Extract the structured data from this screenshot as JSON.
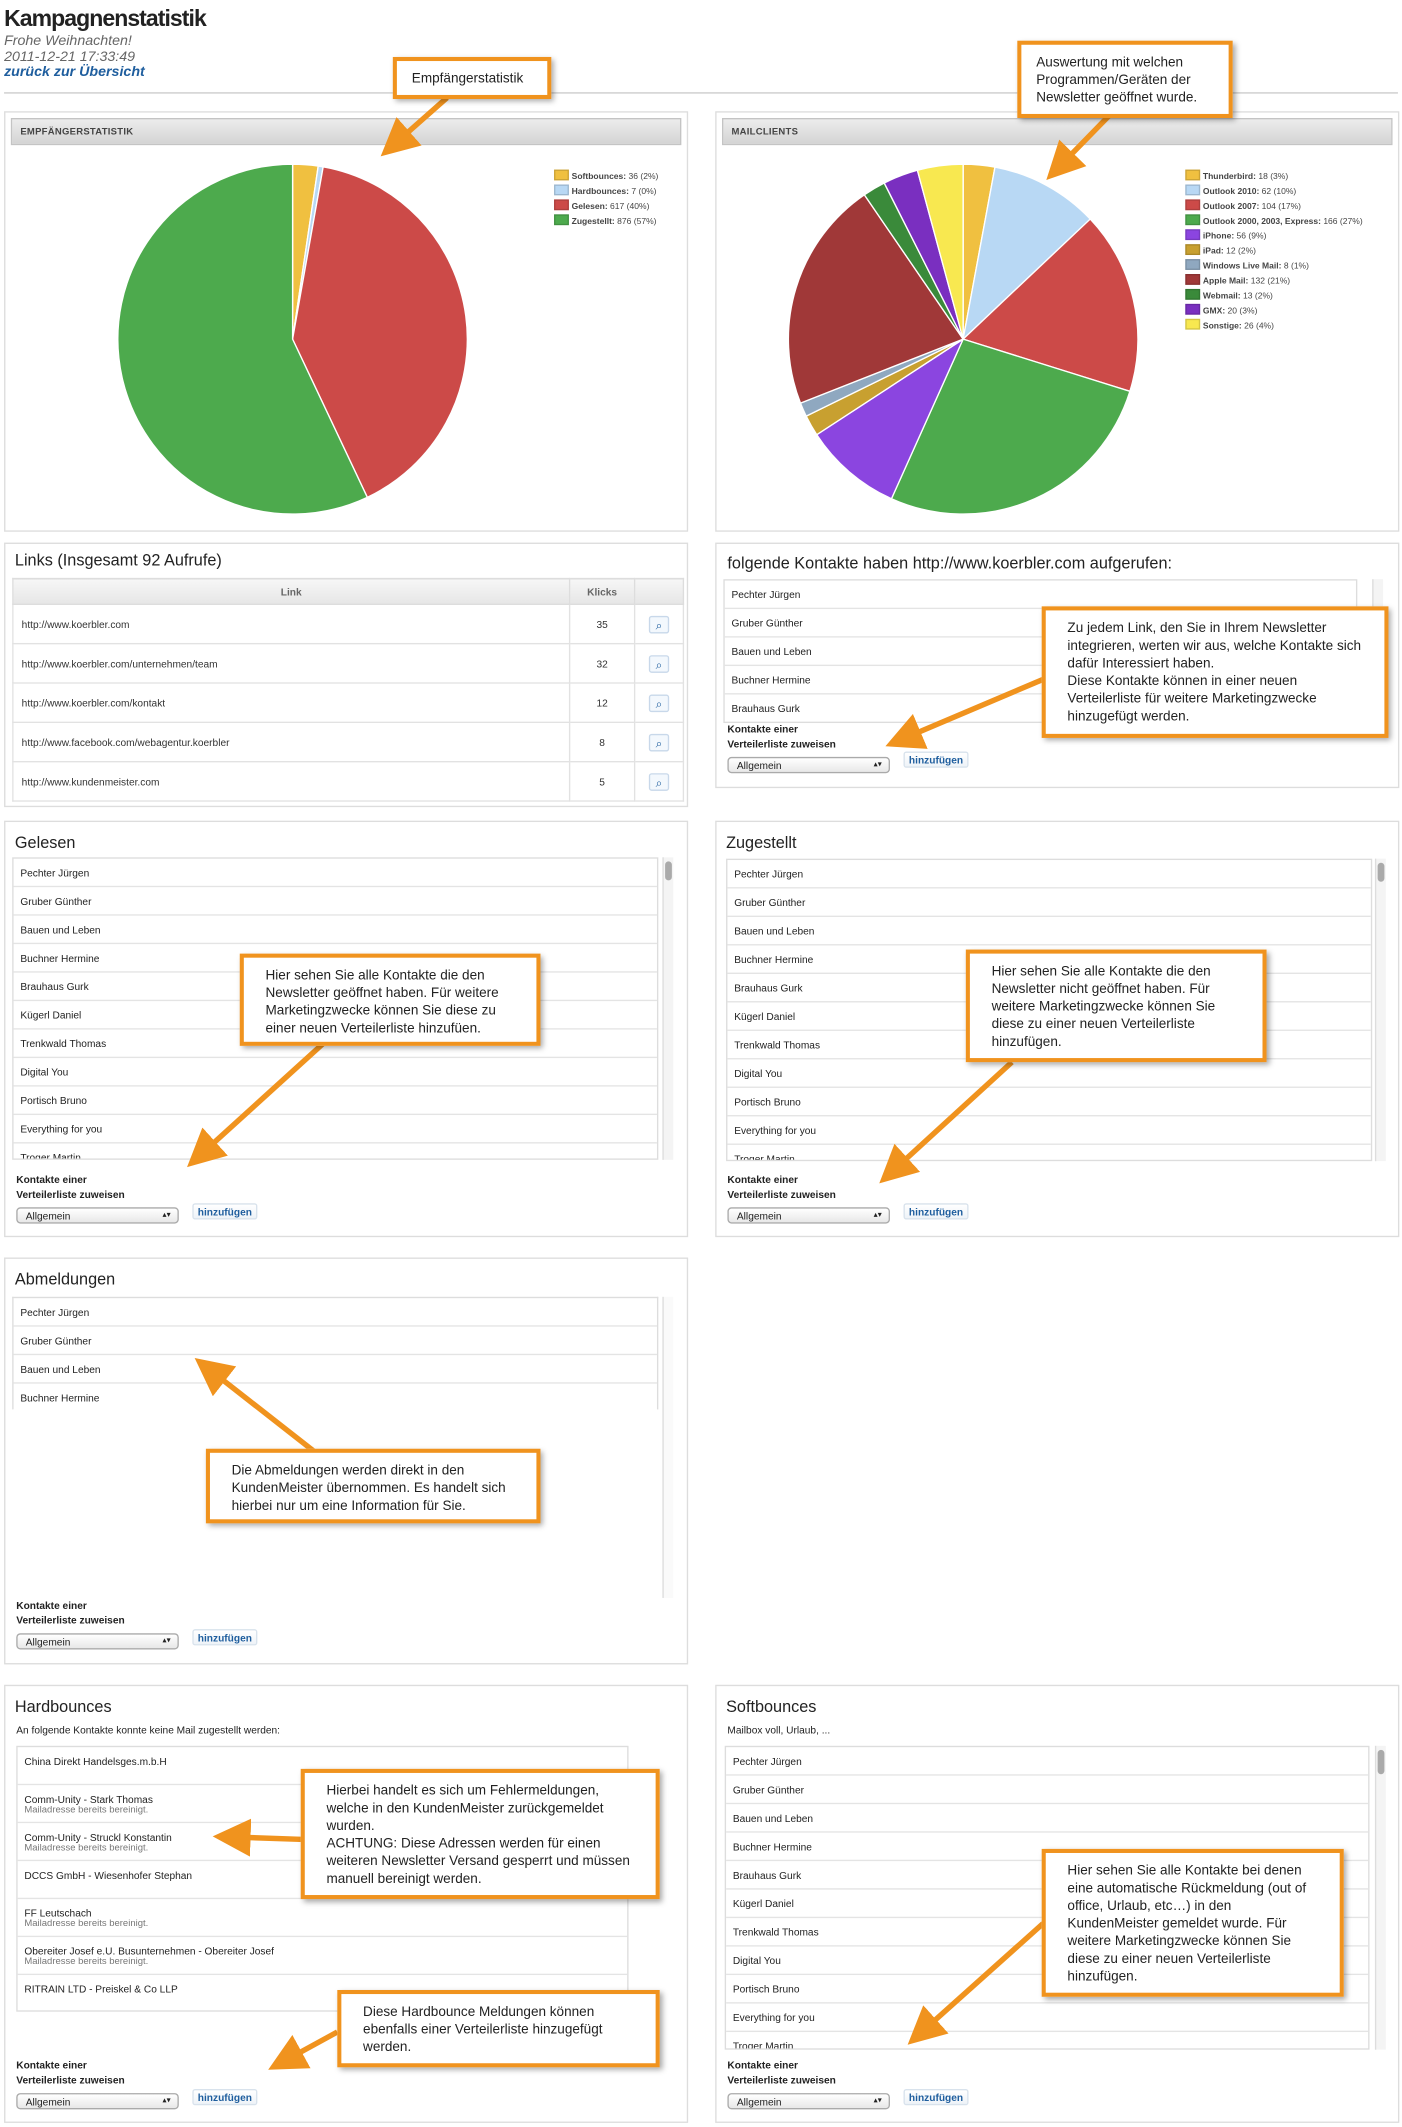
{
  "header": {
    "title": "Kampagnenstatistik",
    "greeting": "Frohe Weihnachten!",
    "datetime": "2011-12-21 17:33:49",
    "back_link": "zurück zur Übersicht"
  },
  "panels": {
    "empfaenger_header": "EMPFÄNGERSTATISTIK",
    "mailclients_header": "MAILCLIENTS",
    "links_title": "Links (Insgesamt 92 Aufrufe)",
    "kontakte_title": "folgende Kontakte haben http://www.koerbler.com aufgerufen:",
    "gelesen_title": "Gelesen",
    "zugestellt_title": "Zugestellt",
    "abmeldungen_title": "Abmeldungen",
    "hardbounces_title": "Hardbounces",
    "hardbounces_sub": "An folgende Kontakte konnte keine Mail zugestellt werden:",
    "softbounces_title": "Softbounces",
    "softbounces_sub": "Mailbox voll, Urlaub, ..."
  },
  "assign": {
    "label_line1": "Kontakte einer",
    "label_line2": "Verteilerliste zuweisen",
    "select_value": "Allgemein",
    "button": "hinzufügen"
  },
  "links_table": {
    "headers": [
      "Link",
      "Klicks"
    ],
    "rows": [
      {
        "url": "http://www.koerbler.com",
        "klicks": "35"
      },
      {
        "url": "http://www.koerbler.com/unternehmen/team",
        "klicks": "32"
      },
      {
        "url": "http://www.koerbler.com/kontakt",
        "klicks": "12"
      },
      {
        "url": "http://www.facebook.com/webagentur.koerbler",
        "klicks": "8"
      },
      {
        "url": "http://www.kundenmeister.com",
        "klicks": "5"
      }
    ]
  },
  "lists": {
    "kontakte": [
      "Pechter Jürgen",
      "Gruber Günther",
      "Bauen und Leben",
      "Buchner Hermine",
      "Brauhaus Gurk"
    ],
    "gelesen": [
      "Pechter Jürgen",
      "Gruber Günther",
      "Bauen und Leben",
      "Buchner Hermine",
      "Brauhaus Gurk",
      "Kügerl Daniel",
      "Trenkwald Thomas",
      "Digital You",
      "Portisch Bruno",
      "Everything for you",
      "Troger Martin"
    ],
    "zugestellt": [
      "Pechter Jürgen",
      "Gruber Günther",
      "Bauen und Leben",
      "Buchner Hermine",
      "Brauhaus Gurk",
      "Kügerl Daniel",
      "Trenkwald Thomas",
      "Digital You",
      "Portisch Bruno",
      "Everything for you",
      "Troger Martin"
    ],
    "abmeldungen": [
      "Pechter Jürgen",
      "Gruber Günther",
      "Bauen und Leben",
      "Buchner Hermine"
    ],
    "hardbounces": [
      {
        "name": "China Direkt Handelsges.m.b.H",
        "note": ""
      },
      {
        "name": "Comm-Unity - Stark Thomas",
        "note": "Mailadresse bereits bereinigt."
      },
      {
        "name": "Comm-Unity - Struckl Konstantin",
        "note": "Mailadresse bereits bereinigt."
      },
      {
        "name": "DCCS GmbH - Wiesenhofer Stephan",
        "note": ""
      },
      {
        "name": "FF Leutschach",
        "note": "Mailadresse bereits bereinigt."
      },
      {
        "name": "Obereiter Josef e.U. Busunternehmen - Obereiter Josef",
        "note": "Mailadresse bereits bereinigt."
      },
      {
        "name": "RITRAIN LTD - Preiskel & Co LLP",
        "note": ""
      }
    ],
    "softbounces": [
      "Pechter Jürgen",
      "Gruber Günther",
      "Bauen und Leben",
      "Buchner Hermine",
      "Brauhaus Gurk",
      "Kügerl Daniel",
      "Trenkwald Thomas",
      "Digital You",
      "Portisch Bruno",
      "Everything for you",
      "Troger Martin"
    ]
  },
  "callouts": {
    "empfaenger": "Empfängerstatistik",
    "mailclients": "Auswertung mit welchen Programmen/Geräten der Newsletter geöffnet wurde.",
    "links": "Zu jedem Link, den Sie in Ihrem Newsletter integrieren, werten wir aus, welche Kontakte sich dafür Interessiert haben.\nDiese Kontakte können in einer neuen Verteilerliste für weitere Marketingzwecke hinzugefügt werden.",
    "gelesen": "Hier sehen Sie alle Kontakte die den Newsletter geöffnet haben. Für weitere Marketingzwecke können Sie diese zu einer neuen Verteilerliste hinzufüen.",
    "zugestellt": "Hier sehen Sie alle Kontakte die den Newsletter nicht geöffnet haben. Für weitere Marketingzwecke können Sie diese zu einer neuen Verteilerliste hinzufügen.",
    "abmeldungen": "Die Abmeldungen werden direkt in den KundenMeister übernommen. Es handelt sich hierbei nur um eine Information für Sie.",
    "hardbounces": "Hierbei handelt es sich um Fehlermeldungen, welche in den KundenMeister zurückgemeldet wurden.\nACHTUNG: Diese Adressen werden für einen weiteren Newsletter Versand gesperrt und müssen manuell bereinigt werden.",
    "hardbounces2": "Diese Hardbounce Meldungen können ebenfalls einer Verteilerliste hinzugefügt werden.",
    "softbounces": "Hier sehen Sie alle Kontakte bei denen eine automatische Rückmeldung (out of office, Urlaub, etc…) in den KundenMeister gemeldet wurde. Für weitere Marketingzwecke können Sie diese zu einer neuen Verteilerliste hinzufügen."
  },
  "chart_data": [
    {
      "type": "pie",
      "title": "EMPFÄNGERSTATISTIK",
      "categories": [
        "Softbounces",
        "Hardbounces",
        "Gelesen",
        "Zugestellt"
      ],
      "values": [
        36,
        7,
        617,
        876
      ],
      "legend_labels": [
        "Softbounces: 36 (2%)",
        "Hardbounces: 7 (0%)",
        "Gelesen: 617 (40%)",
        "Zugestellt: 876 (57%)"
      ],
      "colors": [
        "#f0c040",
        "#b8d8f4",
        "#cc4a48",
        "#4daa4d"
      ],
      "legend": "top-right"
    },
    {
      "type": "pie",
      "title": "MAILCLIENTS",
      "categories": [
        "Thunderbird",
        "Outlook 2010",
        "Outlook 2007",
        "Outlook 2000, 2003, Express",
        "iPhone",
        "iPad",
        "Windows Live Mail",
        "Apple Mail",
        "Webmail",
        "GMX",
        "Sonstige"
      ],
      "values": [
        18,
        62,
        104,
        166,
        56,
        12,
        8,
        132,
        13,
        20,
        26
      ],
      "legend_labels": [
        "Thunderbird: 18 (3%)",
        "Outlook 2010: 62 (10%)",
        "Outlook 2007: 104 (17%)",
        "Outlook 2000, 2003, Express: 166 (27%)",
        "iPhone: 56 (9%)",
        "iPad: 12 (2%)",
        "Windows Live Mail: 8 (1%)",
        "Apple Mail: 132 (21%)",
        "Webmail: 13 (2%)",
        "GMX: 20 (3%)",
        "Sonstige: 26 (4%)"
      ],
      "colors": [
        "#f0c040",
        "#b8d8f4",
        "#cc4a48",
        "#4daa4d",
        "#8b45e0",
        "#c8a030",
        "#8fa8c0",
        "#a03838",
        "#3a8a3a",
        "#7a2fc0",
        "#f8e850"
      ],
      "legend": "top-right"
    }
  ]
}
